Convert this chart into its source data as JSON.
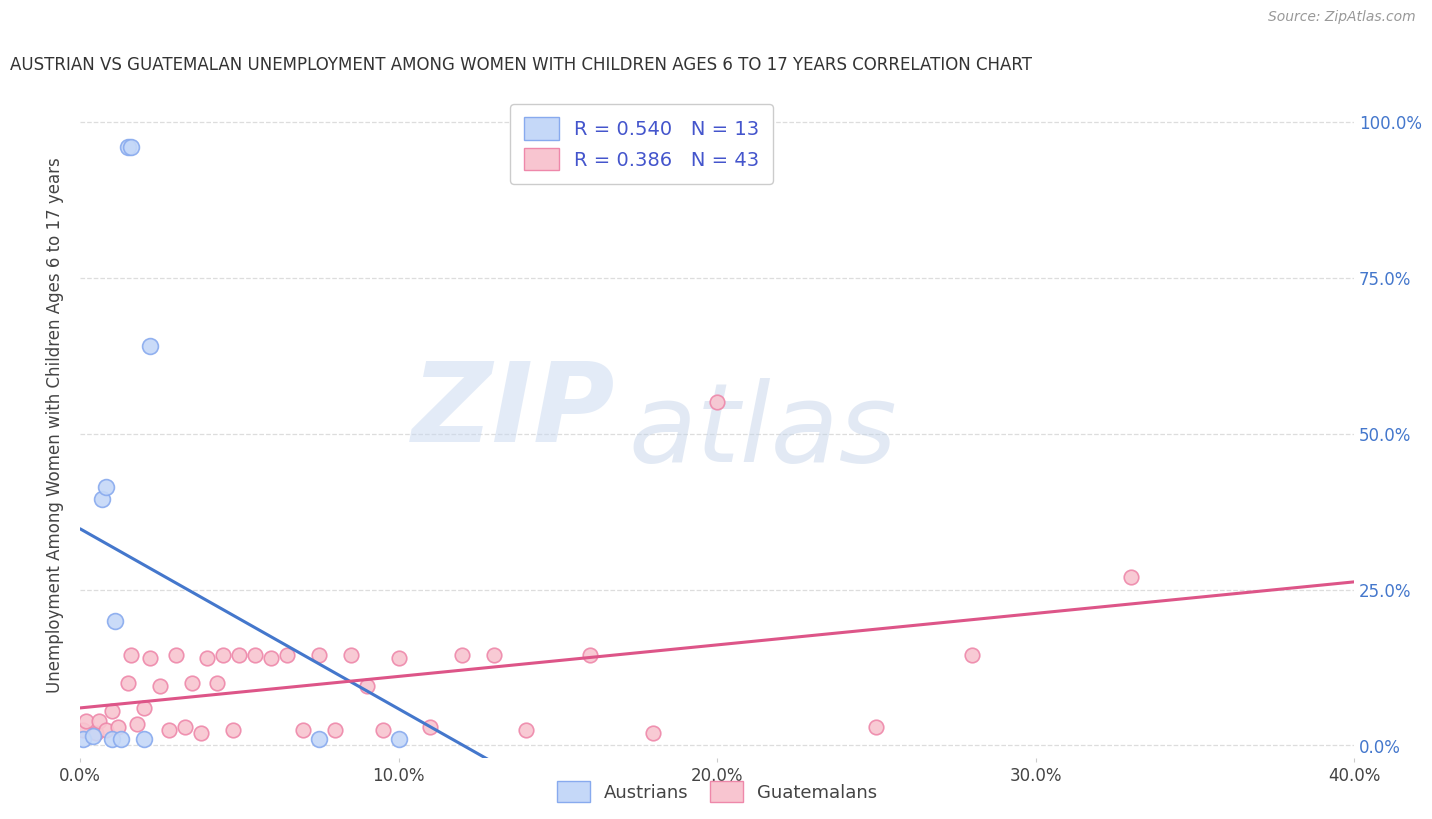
{
  "title": "AUSTRIAN VS GUATEMALAN UNEMPLOYMENT AMONG WOMEN WITH CHILDREN AGES 6 TO 17 YEARS CORRELATION CHART",
  "source": "Source: ZipAtlas.com",
  "ylabel": "Unemployment Among Women with Children Ages 6 to 17 years",
  "xlim": [
    0.0,
    0.4
  ],
  "ylim": [
    -0.02,
    1.05
  ],
  "xtick_vals": [
    0.0,
    0.1,
    0.2,
    0.3,
    0.4
  ],
  "xtick_labels": [
    "0.0%",
    "10.0%",
    "20.0%",
    "30.0%",
    "40.0%"
  ],
  "ytick_vals": [
    0.0,
    0.25,
    0.5,
    0.75,
    1.0
  ],
  "ytick_labels": [
    "0.0%",
    "25.0%",
    "50.0%",
    "75.0%",
    "100.0%"
  ],
  "austrians": {
    "R": 0.54,
    "N": 13,
    "edge_color": "#88aaee",
    "face_color": "#c5d8f8",
    "line_color": "#4477cc",
    "points_x": [
      0.001,
      0.004,
      0.007,
      0.008,
      0.01,
      0.011,
      0.013,
      0.015,
      0.016,
      0.02,
      0.022,
      0.075,
      0.1
    ],
    "points_y": [
      0.01,
      0.015,
      0.395,
      0.415,
      0.01,
      0.2,
      0.01,
      0.96,
      0.96,
      0.01,
      0.64,
      0.01,
      0.01
    ]
  },
  "guatemalans": {
    "R": 0.386,
    "N": 43,
    "edge_color": "#ee88aa",
    "face_color": "#f8c5d0",
    "line_color": "#dd5588",
    "points_x": [
      0.001,
      0.002,
      0.005,
      0.006,
      0.008,
      0.01,
      0.012,
      0.015,
      0.016,
      0.018,
      0.02,
      0.022,
      0.025,
      0.028,
      0.03,
      0.033,
      0.035,
      0.038,
      0.04,
      0.043,
      0.045,
      0.048,
      0.05,
      0.055,
      0.06,
      0.065,
      0.07,
      0.075,
      0.08,
      0.085,
      0.09,
      0.095,
      0.1,
      0.11,
      0.12,
      0.13,
      0.14,
      0.16,
      0.18,
      0.2,
      0.25,
      0.28,
      0.33
    ],
    "points_y": [
      0.025,
      0.04,
      0.02,
      0.04,
      0.025,
      0.055,
      0.03,
      0.1,
      0.145,
      0.035,
      0.06,
      0.14,
      0.095,
      0.025,
      0.145,
      0.03,
      0.1,
      0.02,
      0.14,
      0.1,
      0.145,
      0.025,
      0.145,
      0.145,
      0.14,
      0.145,
      0.025,
      0.145,
      0.025,
      0.145,
      0.095,
      0.025,
      0.14,
      0.03,
      0.145,
      0.145,
      0.025,
      0.145,
      0.02,
      0.55,
      0.03,
      0.145,
      0.27
    ]
  },
  "legend_text_color": "#4455cc",
  "right_tick_color": "#4477cc",
  "watermark_zip_color": "#ccd8ee",
  "watermark_atlas_color": "#c8d4e8",
  "background_color": "#ffffff",
  "grid_color": "#dddddd"
}
